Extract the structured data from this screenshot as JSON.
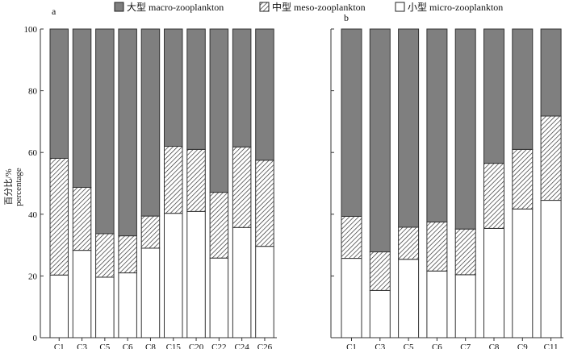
{
  "chart_data": [
    {
      "type": "bar",
      "stacked": true,
      "panel_label": "a",
      "ylabel": [
        "百分比/%",
        "percentage"
      ],
      "ylim": [
        0,
        100
      ],
      "yticks": [
        0,
        20,
        40,
        60,
        80,
        100
      ],
      "categories": [
        "C1",
        "C3",
        "C5",
        "C6",
        "C8",
        "C15",
        "C20",
        "C22",
        "C24",
        "C26"
      ],
      "series": [
        {
          "name": "小型 micro-zooplankton",
          "values": [
            20.3,
            28.3,
            19.6,
            21.0,
            29.0,
            40.3,
            40.9,
            25.8,
            35.7,
            29.6
          ]
        },
        {
          "name": "中型 meso-zooplankton",
          "values": [
            37.8,
            20.4,
            14.1,
            12.0,
            10.4,
            21.7,
            20.1,
            21.3,
            26.1,
            27.9
          ]
        },
        {
          "name": "大型 macro-zooplankton",
          "values": [
            41.9,
            51.3,
            66.3,
            67.0,
            60.6,
            38.0,
            39.0,
            52.9,
            38.2,
            42.5
          ]
        }
      ]
    },
    {
      "type": "bar",
      "stacked": true,
      "panel_label": "b",
      "ylim": [
        0,
        100
      ],
      "categories": [
        "C1",
        "C3",
        "C5",
        "C6",
        "C7",
        "C8",
        "C9",
        "C11"
      ],
      "series": [
        {
          "name": "小型 micro-zooplankton",
          "values": [
            25.7,
            15.3,
            25.4,
            21.6,
            20.4,
            35.4,
            41.7,
            44.5
          ]
        },
        {
          "name": "中型 meso-zooplankton",
          "values": [
            13.6,
            12.5,
            10.4,
            15.9,
            14.8,
            21.1,
            19.3,
            27.3
          ]
        },
        {
          "name": "大型 macro-zooplankton",
          "values": [
            60.7,
            72.2,
            64.2,
            62.5,
            64.8,
            43.5,
            39.0,
            28.2
          ]
        }
      ]
    }
  ],
  "legend": [
    {
      "label": "大型 macro-zooplankton",
      "fill": "macro"
    },
    {
      "label": "中型 meso-zooplankton",
      "fill": "meso"
    },
    {
      "label": "小型 micro-zooplankton",
      "fill": "micro"
    }
  ],
  "colors": {
    "macro": "#7f7f7f",
    "micro": "#ffffff",
    "axis": "#333333"
  }
}
